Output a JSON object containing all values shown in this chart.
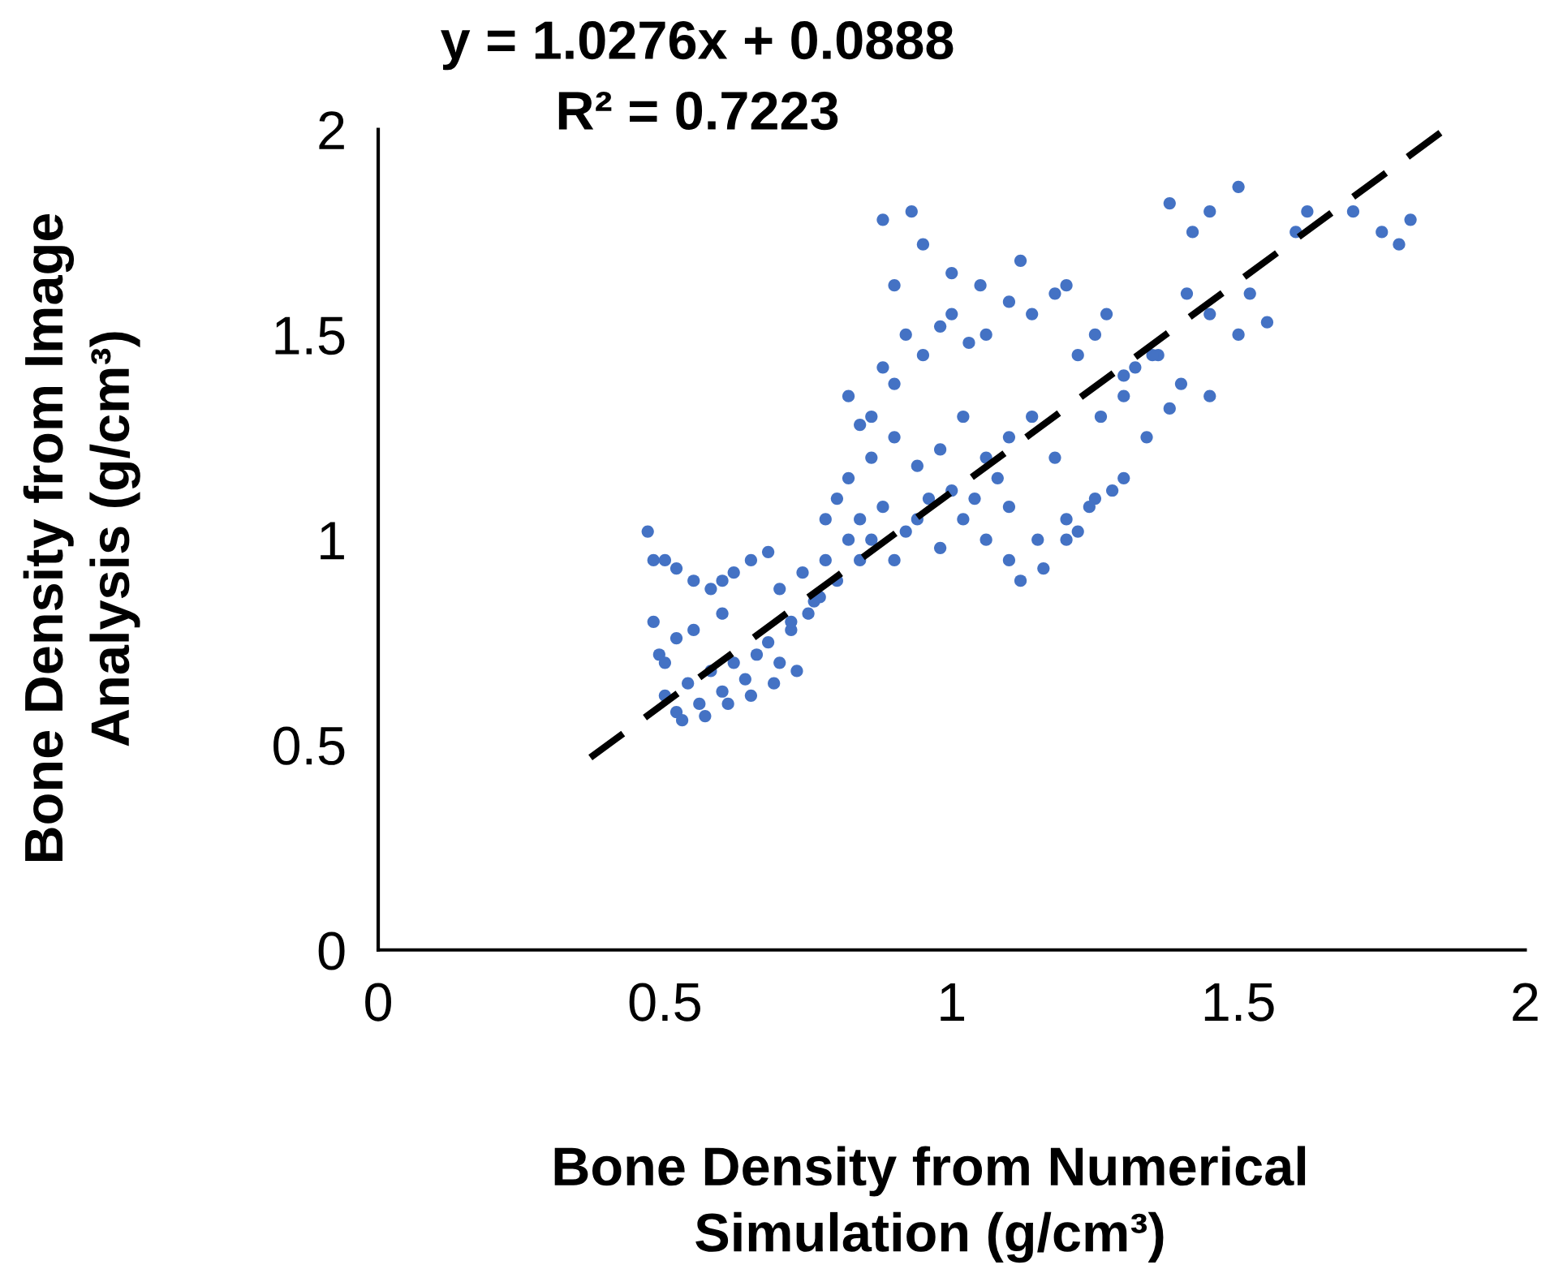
{
  "chart_data": {
    "type": "scatter",
    "xlabel": "Bone Density from Numerical\nSimulation (g/cm³)",
    "ylabel": "Bone Density from Image\nAnalysis (g/cm³)",
    "annotations": [
      "y = 1.0276x + 0.0888",
      "R² = 0.7223"
    ],
    "xlim": [
      0,
      2
    ],
    "ylim": [
      0,
      2
    ],
    "xticks": [
      0,
      0.5,
      1,
      1.5,
      2
    ],
    "yticks": [
      0,
      0.5,
      1,
      1.5,
      2
    ],
    "grid": false,
    "legend": false,
    "series": [
      {
        "marker": "circle",
        "color": "#4472c4",
        "x": [
          0.47,
          0.48,
          0.5,
          0.52,
          0.55,
          0.58,
          0.6,
          0.62,
          0.65,
          0.68,
          0.48,
          0.49,
          0.5,
          0.52,
          0.55,
          0.6,
          0.5,
          0.52,
          0.54,
          0.56,
          0.58,
          0.6,
          0.62,
          0.64,
          0.66,
          0.68,
          0.7,
          0.72,
          0.53,
          0.57,
          0.61,
          0.65,
          0.69,
          0.73,
          0.75,
          0.77,
          0.7,
          0.72,
          0.74,
          0.76,
          0.78,
          0.8,
          0.82,
          0.84,
          0.78,
          0.8,
          0.82,
          0.84,
          0.86,
          0.88,
          0.9,
          0.92,
          0.94,
          0.96,
          0.98,
          1.0,
          1.02,
          1.04,
          1.06,
          1.08,
          1.1,
          0.86,
          0.9,
          0.94,
          0.98,
          1.02,
          1.06,
          1.1,
          1.14,
          1.18,
          1.1,
          1.15,
          1.2,
          1.25,
          1.3,
          1.22,
          1.28,
          1.12,
          1.16,
          1.2,
          1.24,
          0.82,
          0.84,
          0.86,
          0.88,
          0.9,
          0.92,
          0.95,
          0.98,
          1.0,
          1.03,
          1.06,
          1.1,
          1.14,
          1.18,
          1.22,
          1.25,
          0.88,
          0.93,
          0.95,
          0.9,
          1.0,
          1.05,
          1.12,
          1.2,
          1.27,
          1.32,
          1.36,
          1.38,
          1.42,
          1.45,
          1.5,
          1.41,
          1.45,
          1.5,
          1.55,
          1.3,
          1.35,
          1.4,
          1.45,
          1.52,
          1.6,
          1.62,
          1.7,
          1.75,
          1.78,
          1.8,
          1.26,
          1.3,
          1.34,
          1.38
        ],
        "values": [
          1.02,
          0.95,
          0.95,
          0.93,
          0.9,
          0.88,
          0.9,
          0.92,
          0.95,
          0.97,
          0.8,
          0.72,
          0.7,
          0.76,
          0.78,
          0.82,
          0.62,
          0.58,
          0.65,
          0.6,
          0.68,
          0.63,
          0.7,
          0.66,
          0.72,
          0.75,
          0.7,
          0.78,
          0.56,
          0.57,
          0.6,
          0.62,
          0.65,
          0.68,
          0.82,
          0.86,
          0.88,
          0.8,
          0.92,
          0.85,
          0.95,
          0.9,
          1.0,
          0.95,
          1.05,
          1.1,
          1.15,
          1.05,
          1.0,
          1.08,
          0.95,
          1.02,
          1.05,
          1.1,
          0.98,
          1.12,
          1.05,
          1.1,
          1.0,
          1.15,
          1.08,
          1.2,
          1.25,
          1.18,
          1.22,
          1.3,
          1.2,
          1.25,
          1.3,
          1.2,
          0.95,
          1.0,
          1.05,
          1.1,
          1.15,
          1.02,
          1.12,
          0.9,
          0.93,
          1.0,
          1.08,
          1.35,
          1.28,
          1.3,
          1.42,
          1.38,
          1.5,
          1.45,
          1.52,
          1.55,
          1.48,
          1.5,
          1.58,
          1.55,
          1.6,
          1.45,
          1.5,
          1.78,
          1.8,
          1.72,
          1.62,
          1.65,
          1.62,
          1.68,
          1.62,
          1.55,
          1.42,
          1.45,
          1.82,
          1.75,
          1.8,
          1.86,
          1.6,
          1.55,
          1.5,
          1.53,
          1.4,
          1.45,
          1.38,
          1.35,
          1.6,
          1.75,
          1.8,
          1.8,
          1.75,
          1.72,
          1.78,
          1.3,
          1.35,
          1.25,
          1.32
        ]
      },
      {
        "type": "line",
        "line_style": "dashed",
        "marker": "none",
        "color": "#000000",
        "x": [
          0.37,
          1.86
        ],
        "values": [
          0.469,
          2.0
        ]
      }
    ]
  }
}
